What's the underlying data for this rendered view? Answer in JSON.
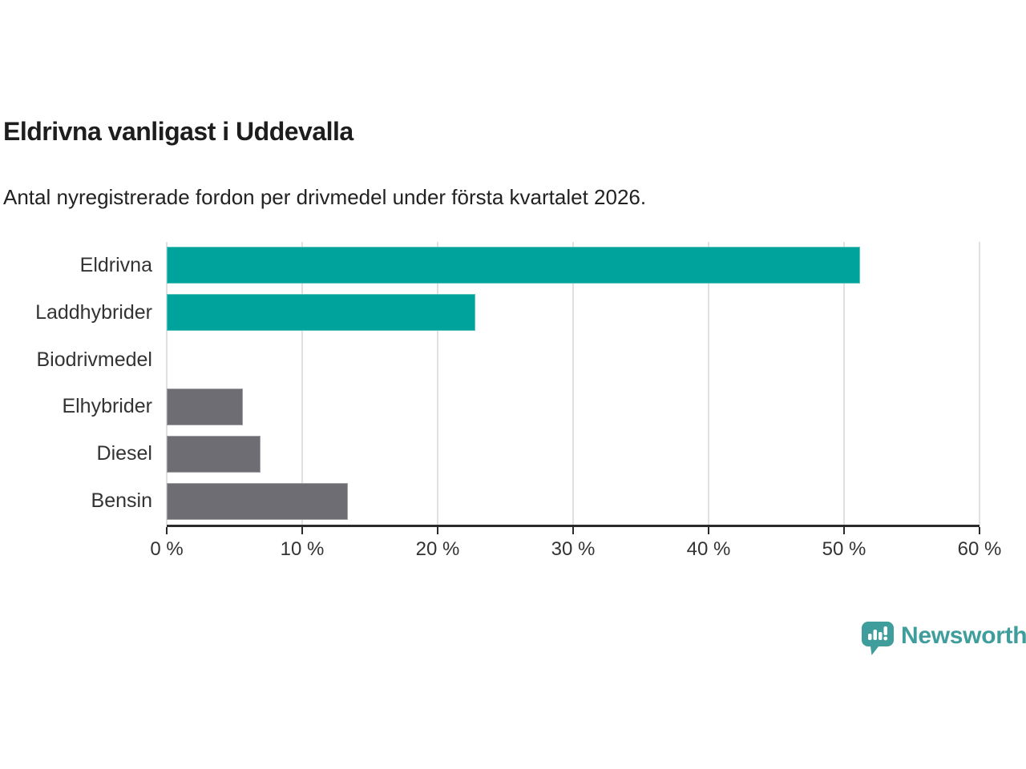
{
  "chart": {
    "title": "Eldrivna vanligast i Uddevalla",
    "subtitle": "Antal nyregistrerade fordon per drivmedel under första kvartalet 2026."
  },
  "chart_data": {
    "type": "bar",
    "orientation": "horizontal",
    "title": "Eldrivna vanligast i Uddevalla",
    "subtitle": "Antal nyregistrerade fordon per drivmedel under första kvartalet 2026.",
    "xlabel": "",
    "ylabel": "",
    "unit": "%",
    "categories": [
      "Eldrivna",
      "Laddhybrider",
      "Biodrivmedel",
      "Elhybrider",
      "Diesel",
      "Bensin"
    ],
    "values": [
      51.2,
      22.8,
      0,
      5.6,
      6.9,
      13.4
    ],
    "xlim": [
      0,
      60
    ],
    "x_ticks": [
      0,
      10,
      20,
      30,
      40,
      50,
      60
    ],
    "x_tick_labels": [
      "0 %",
      "10 %",
      "20 %",
      "30 %",
      "40 %",
      "50 %",
      "60 %"
    ],
    "bar_colors": [
      "#00a39b",
      "#00a39b",
      "#6d6d73",
      "#6d6d73",
      "#6d6d73",
      "#6d6d73"
    ],
    "grid": true,
    "legend": "none",
    "colors": {
      "highlight": "#00a39b",
      "neutral": "#6d6d73",
      "gridline": "#e0e0e0",
      "axis": "#2b2b2b",
      "label": "#333333"
    }
  },
  "branding": {
    "logo_text": "Newsworthy",
    "logo_color": "#3f9e9c",
    "logo_icon": "speech-bubble-bar-chart-icon"
  }
}
